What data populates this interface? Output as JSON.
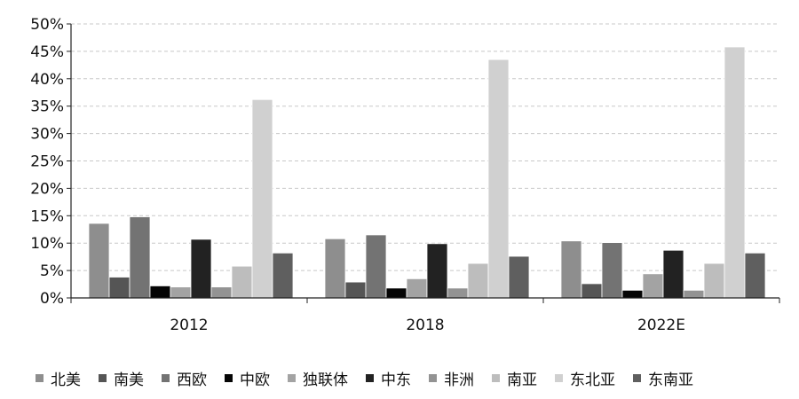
{
  "chart_data": {
    "type": "bar",
    "categories": [
      "2012",
      "2018",
      "2022E"
    ],
    "ylim": [
      0,
      50
    ],
    "yticks": [
      "0%",
      "5%",
      "10%",
      "15%",
      "20%",
      "25%",
      "30%",
      "35%",
      "40%",
      "45%",
      "50%"
    ],
    "grid": true,
    "legend_position": "bottom",
    "series": [
      {
        "name": "北美",
        "color": "#8e8e8e",
        "values": [
          13.6,
          10.8,
          10.4
        ]
      },
      {
        "name": "南美",
        "color": "#555555",
        "values": [
          3.8,
          2.9,
          2.6
        ]
      },
      {
        "name": "西欧",
        "color": "#737373",
        "values": [
          14.8,
          11.5,
          10.1
        ]
      },
      {
        "name": "中欧",
        "color": "#050505",
        "values": [
          2.2,
          1.8,
          1.4
        ]
      },
      {
        "name": "独联体",
        "color": "#a3a3a3",
        "values": [
          2.0,
          3.5,
          4.4
        ]
      },
      {
        "name": "中东",
        "color": "#222222",
        "values": [
          10.7,
          9.9,
          8.7
        ]
      },
      {
        "name": "非洲",
        "color": "#939393",
        "values": [
          2.0,
          1.8,
          1.4
        ]
      },
      {
        "name": "南亚",
        "color": "#bdbdbd",
        "values": [
          5.8,
          6.3,
          6.3
        ]
      },
      {
        "name": "东北亚",
        "color": "#d0d0d0",
        "values": [
          36.2,
          43.5,
          45.8
        ]
      },
      {
        "name": "东南亚",
        "color": "#5f5f5f",
        "values": [
          8.2,
          7.6,
          8.2
        ]
      }
    ]
  }
}
